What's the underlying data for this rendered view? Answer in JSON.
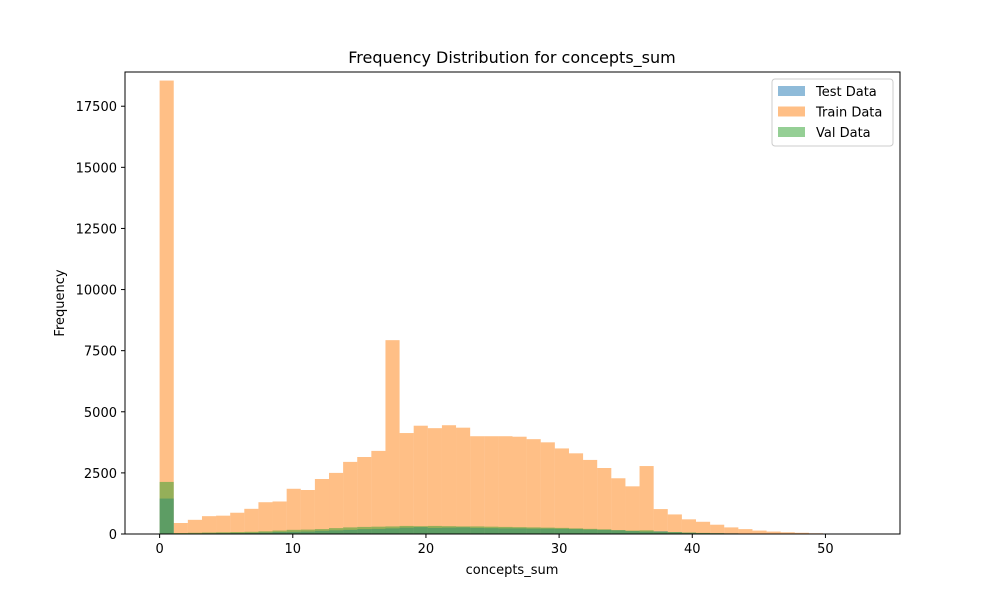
{
  "chart_data": {
    "type": "bar",
    "title": "Frequency Distribution for concepts_sum",
    "xlabel": "concepts_sum",
    "ylabel": "Frequency",
    "xlim": [
      -2.6,
      55.6
    ],
    "ylim": [
      0,
      18900
    ],
    "xticks": [
      0,
      10,
      20,
      30,
      40,
      50
    ],
    "yticks": [
      0,
      2500,
      5000,
      7500,
      10000,
      12500,
      15000,
      17500
    ],
    "grid": false,
    "legend_position": "top-right",
    "series": [
      {
        "name": "Test Data",
        "color": "#1f77b4",
        "opacity": 0.5,
        "bin_start": 0,
        "bin_width": 1.06,
        "values": [
          1450,
          15,
          20,
          30,
          35,
          40,
          45,
          60,
          80,
          90,
          100,
          130,
          150,
          170,
          200,
          210,
          230,
          260,
          280,
          250,
          260,
          270,
          250,
          240,
          230,
          230,
          220,
          220,
          210,
          200,
          180,
          170,
          150,
          120,
          100,
          110,
          70,
          50,
          35,
          30,
          25,
          15,
          12,
          10,
          8,
          5,
          3,
          2,
          2,
          1
        ]
      },
      {
        "name": "Train Data",
        "color": "#ff7f0e",
        "opacity": 0.5,
        "bin_start": 0,
        "bin_width": 1.06,
        "values": [
          18550,
          450,
          580,
          730,
          750,
          870,
          1030,
          1300,
          1330,
          1850,
          1800,
          2250,
          2500,
          2950,
          3150,
          3400,
          7930,
          4130,
          4430,
          4330,
          4450,
          4350,
          4000,
          4000,
          4000,
          3980,
          3880,
          3750,
          3500,
          3300,
          3030,
          2700,
          2280,
          1950,
          2780,
          1020,
          800,
          600,
          500,
          380,
          270,
          200,
          140,
          100,
          70,
          50,
          30,
          20,
          10,
          5
        ]
      },
      {
        "name": "Val Data",
        "color": "#2ca02c",
        "opacity": 0.5,
        "bin_start": 0,
        "bin_width": 1.06,
        "values": [
          2130,
          40,
          50,
          60,
          70,
          80,
          90,
          110,
          140,
          170,
          180,
          200,
          240,
          270,
          290,
          300,
          310,
          330,
          320,
          330,
          320,
          310,
          310,
          300,
          290,
          280,
          270,
          260,
          250,
          230,
          210,
          190,
          160,
          140,
          150,
          100,
          80,
          60,
          45,
          35,
          25,
          20,
          15,
          10,
          8,
          5,
          3,
          2,
          1,
          1
        ]
      }
    ]
  }
}
